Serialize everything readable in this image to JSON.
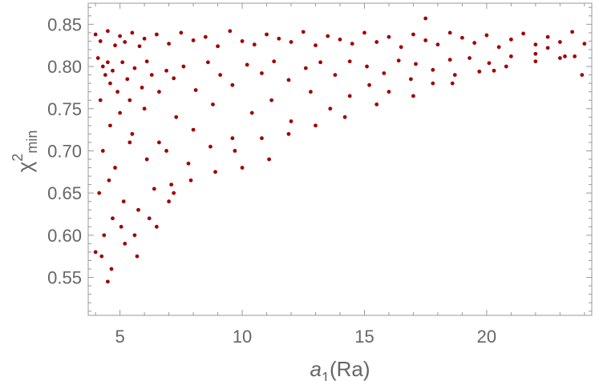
{
  "chart_data": {
    "type": "scatter",
    "title": "",
    "xlabel": {
      "base": "a",
      "sub": "1",
      "suffix": "(Ra)"
    },
    "ylabel": {
      "base": "χ",
      "sup": "2",
      "sub": "min"
    },
    "xlim": [
      3.7,
      24.3
    ],
    "ylim": [
      0.505,
      0.875
    ],
    "xticks": [
      5,
      10,
      15,
      20
    ],
    "xtick_labels": [
      "5",
      "10",
      "15",
      "20"
    ],
    "yticks": [
      0.55,
      0.6,
      0.65,
      0.7,
      0.75,
      0.8,
      0.85
    ],
    "ytick_labels": [
      "0.55",
      "0.60",
      "0.65",
      "0.70",
      "0.75",
      "0.80",
      "0.85"
    ],
    "grid": false,
    "legend": "none",
    "marker_color": "#a00000",
    "series": [
      {
        "x": [
          4.0,
          4.2,
          4.5,
          4.8,
          5.0,
          5.2,
          5.5,
          5.8,
          6.0,
          6.5,
          7.0,
          7.5,
          8.0,
          8.5,
          9.0,
          9.5,
          10.0,
          10.5,
          11.0,
          11.5,
          12.0,
          12.5,
          13.0,
          13.5,
          14.0,
          14.5,
          15.0,
          15.5,
          16.0,
          16.5,
          17.0,
          17.5,
          18.0,
          18.5,
          19.0,
          19.5,
          20.0,
          20.5,
          21.0,
          21.5,
          22.0,
          22.5,
          23.0,
          23.5,
          24.0,
          4.1,
          4.3,
          4.4,
          4.5,
          4.6,
          4.7,
          4.9,
          5.1,
          5.3,
          5.4,
          5.6,
          5.9,
          6.1,
          6.3,
          6.6,
          6.9,
          7.2,
          7.6,
          8.1,
          8.6,
          9.1,
          9.6,
          10.2,
          10.8,
          11.3,
          11.9,
          12.6,
          13.2,
          13.8,
          14.4,
          15.1,
          15.8,
          16.4,
          17.1,
          17.8,
          18.5,
          19.3,
          20.1,
          21.0,
          22.0,
          23.0,
          4.2,
          4.6,
          5.0,
          5.5,
          6.0,
          6.6,
          7.3,
          8.0,
          8.8,
          9.6,
          10.4,
          11.2,
          12.0,
          12.8,
          13.6,
          14.4,
          15.2,
          16.0,
          16.9,
          17.8,
          18.7,
          19.7,
          20.8,
          22.0,
          23.2,
          4.3,
          4.8,
          5.4,
          6.1,
          6.9,
          7.8,
          8.7,
          9.7,
          10.8,
          11.9,
          13.0,
          14.2,
          15.5,
          17.0,
          18.6,
          20.3,
          4.15,
          4.55,
          5.15,
          5.75,
          6.4,
          7.1,
          7.9,
          8.9,
          10.0,
          11.1,
          4.0,
          4.35,
          4.7,
          5.05,
          5.6,
          6.2,
          7.0,
          7.2,
          4.25,
          4.5,
          4.65,
          5.2,
          5.7,
          6.5,
          17.5,
          22.5,
          23.6,
          23.9
        ],
        "y": [
          0.838,
          0.83,
          0.842,
          0.825,
          0.836,
          0.829,
          0.84,
          0.824,
          0.833,
          0.838,
          0.827,
          0.84,
          0.831,
          0.835,
          0.824,
          0.842,
          0.83,
          0.826,
          0.838,
          0.833,
          0.829,
          0.841,
          0.825,
          0.836,
          0.832,
          0.827,
          0.84,
          0.829,
          0.835,
          0.823,
          0.838,
          0.831,
          0.826,
          0.84,
          0.834,
          0.828,
          0.837,
          0.823,
          0.832,
          0.839,
          0.826,
          0.835,
          0.829,
          0.841,
          0.827,
          0.81,
          0.8,
          0.79,
          0.805,
          0.78,
          0.795,
          0.77,
          0.805,
          0.785,
          0.76,
          0.798,
          0.775,
          0.806,
          0.79,
          0.77,
          0.795,
          0.786,
          0.8,
          0.772,
          0.805,
          0.79,
          0.778,
          0.802,
          0.792,
          0.806,
          0.784,
          0.798,
          0.805,
          0.79,
          0.806,
          0.8,
          0.792,
          0.807,
          0.803,
          0.796,
          0.808,
          0.81,
          0.804,
          0.812,
          0.815,
          0.81,
          0.76,
          0.73,
          0.745,
          0.72,
          0.75,
          0.71,
          0.74,
          0.725,
          0.755,
          0.715,
          0.745,
          0.76,
          0.735,
          0.77,
          0.75,
          0.765,
          0.778,
          0.77,
          0.785,
          0.78,
          0.79,
          0.794,
          0.8,
          0.806,
          0.812,
          0.7,
          0.68,
          0.71,
          0.69,
          0.7,
          0.685,
          0.705,
          0.7,
          0.715,
          0.72,
          0.73,
          0.74,
          0.755,
          0.765,
          0.78,
          0.795,
          0.65,
          0.665,
          0.64,
          0.63,
          0.655,
          0.66,
          0.665,
          0.675,
          0.68,
          0.69,
          0.58,
          0.6,
          0.62,
          0.61,
          0.6,
          0.62,
          0.64,
          0.65,
          0.575,
          0.545,
          0.56,
          0.59,
          0.575,
          0.61,
          0.857,
          0.822,
          0.812,
          0.79
        ]
      }
    ]
  }
}
